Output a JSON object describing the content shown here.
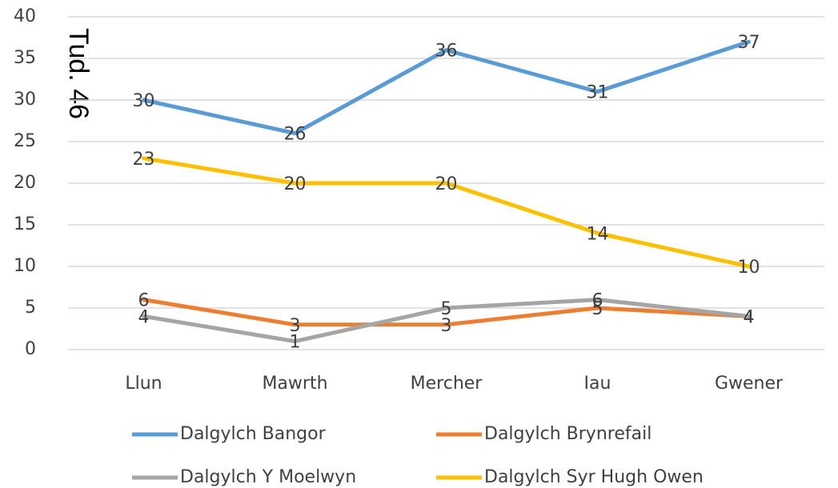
{
  "chart_data": {
    "type": "line",
    "annotation": "Tud. 46",
    "categories": [
      "Llun",
      "Mawrth",
      "Mercher",
      "Iau",
      "Gwener"
    ],
    "series": [
      {
        "name": "Dalgylch Bangor",
        "color": "#5b9bd5",
        "values": [
          30,
          26,
          36,
          31,
          37
        ]
      },
      {
        "name": "Dalgylch Brynrefail",
        "color": "#ed7d31",
        "values": [
          6,
          3,
          3,
          5,
          4
        ]
      },
      {
        "name": "Dalgylch Y Moelwyn",
        "color": "#a5a5a5",
        "values": [
          4,
          1,
          5,
          6,
          4
        ]
      },
      {
        "name": "Dalgylch Syr Hugh Owen",
        "color": "#ffc000",
        "values": [
          23,
          20,
          20,
          14,
          10
        ]
      }
    ],
    "ylim": [
      0,
      40
    ],
    "yticks": [
      0,
      5,
      10,
      15,
      20,
      25,
      30,
      35,
      40
    ],
    "grid": true
  }
}
